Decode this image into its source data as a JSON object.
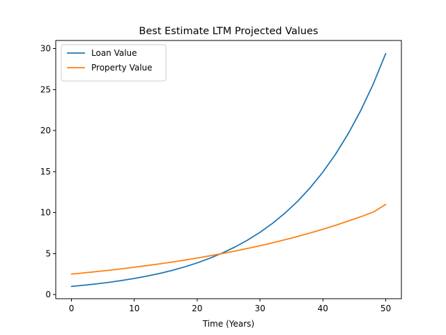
{
  "chart_data": {
    "type": "line",
    "title": "Best Estimate LTM Projected Values",
    "xlabel": "Time (Years)",
    "ylabel": "",
    "xlim": [
      -2.5,
      52.5
    ],
    "ylim": [
      -0.5,
      31
    ],
    "xticks": [
      0,
      10,
      20,
      30,
      40,
      50
    ],
    "yticks": [
      0,
      5,
      10,
      15,
      20,
      25,
      30
    ],
    "grid": false,
    "legend_position": "upper-left",
    "x": [
      0,
      2,
      4,
      6,
      8,
      10,
      12,
      14,
      16,
      18,
      20,
      22,
      24,
      26,
      28,
      30,
      32,
      34,
      36,
      38,
      40,
      42,
      44,
      46,
      48,
      50
    ],
    "series": [
      {
        "name": "Loan Value",
        "color": "#1f77b4",
        "values": [
          1.0,
          1.15,
          1.31,
          1.5,
          1.72,
          1.97,
          2.26,
          2.58,
          2.95,
          3.38,
          3.87,
          4.43,
          5.07,
          5.8,
          6.64,
          7.6,
          8.7,
          9.96,
          11.4,
          13.05,
          14.94,
          17.1,
          19.58,
          22.41,
          25.65,
          29.4
        ]
      },
      {
        "name": "Property Value",
        "color": "#ff7f0e",
        "values": [
          2.5,
          2.65,
          2.81,
          2.97,
          3.15,
          3.34,
          3.54,
          3.75,
          3.97,
          4.21,
          4.46,
          4.73,
          5.01,
          5.31,
          5.63,
          5.96,
          6.32,
          6.7,
          7.1,
          7.52,
          7.97,
          8.45,
          8.96,
          9.49,
          10.06,
          11.0
        ]
      }
    ]
  }
}
